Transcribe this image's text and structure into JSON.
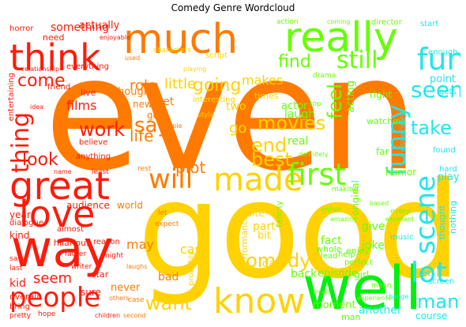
{
  "title": "Comedy Genre Wordcloud",
  "palette": {
    "red": "#ff1a0a",
    "orange": "#ff7a00",
    "yellow": "#ffd200",
    "lime": "#66ff00",
    "green": "#00f010",
    "cyan": "#22e6ea",
    "ltcyan": "#60f0f0"
  },
  "words": {
    "even": "even",
    "good": "good",
    "well": "well",
    "way": "way",
    "great": "great",
    "really": "really",
    "much": "much",
    "think": "think",
    "love": "love",
    "people": "people",
    "know": "know",
    "made": "made",
    "first": "first",
    "scene": "scene",
    "funny": "funny",
    "fun": "fun",
    "lot": "lot",
    "will": "will",
    "thing": "thing",
    "comedy": "comedy",
    "still": "still",
    "seen": "seen",
    "say": "say",
    "work": "work",
    "movies": "movies",
    "end": "end",
    "best": "best",
    "look": "look",
    "come": "come",
    "find": "find",
    "feel": "feel",
    "life": "life",
    "plot": "plot",
    "going": "going",
    "take": "take",
    "want": "want",
    "many": "many",
    "seem": "seem",
    "something": "something",
    "actually": "actually",
    "role": "role",
    "little": "little",
    "makes": "makes",
    "films": "films",
    "yet": "yet",
    "go": "go",
    "fact": "fact",
    "back": "back",
    "episode": "episode",
    "moment": "moment",
    "another": "another",
    "give": "give",
    "joke": "joke",
    "point": "point",
    "fun2": "fun",
    "real": "real",
    "laugh": "laugh",
    "bad": "bad",
    "may": "may",
    "cast": "cast",
    "part": "part",
    "bit": "bit",
    "world": "world",
    "year": "year",
    "kind": "kind",
    "audience": "audience",
    "day": "day",
    "never": "never",
    "star": "star",
    "sure": "sure",
    "kid": "kid",
    "overall": "overall",
    "almost": "almost",
    "actor": "actor",
    "acting": "acting",
    "director": "director",
    "start": "start",
    "play": "play",
    "humor": "humor",
    "course": "course",
    "original": "original",
    "performance": "performance",
    "family": "family",
    "far": "far",
    "right": "right",
    "watching": "watching",
    "especially": "especially",
    "thought": "thought",
    "nothing": "nothing",
    "girl": "girl",
    "set": "set",
    "gets": "gets",
    "probably": "probably",
    "hilarious": "hilarious",
    "reason": "reason",
    "dialogue": "dialogue",
    "need": "need",
    "everything": "everything",
    "friend": "friend",
    "horror": "horror",
    "entertaining": "entertaining",
    "though": "though",
    "new": "new",
    "got": "got",
    "funniest": "funniest",
    "interesting": "interesting",
    "believe": "believe",
    "anything": "anything",
    "characters": "characters",
    "enough": "enough",
    "found": "found",
    "hard": "hard",
    "screen": "screen",
    "others": "others",
    "enjoy": "enjoy",
    "things": "things",
    "script": "script",
    "perfect": "perfect",
    "help": "help",
    "music": "music",
    "whole": "whole",
    "lead": "lead",
    "quite": "quite",
    "two": "two",
    "times": "times",
    "made2": "made",
    "live": "live",
    "bring": "bring",
    "hope": "hope",
    "writer": "writer",
    "father": "father",
    "saw": "saw",
    "last": "last",
    "pretty": "pretty",
    "enjoyable": "enjoyable",
    "relationship": "relationship",
    "idea": "idea",
    "least": "least",
    "rest": "rest",
    "let": "let",
    "expect": "expect",
    "might": "might",
    "shows": "shows",
    "making": "making",
    "either": "either",
    "amazing": "amazing",
    "excellent": "excellent",
    "every": "every",
    "based": "based",
    "man": "man",
    "small": "small",
    "mean": "mean",
    "change": "change",
    "experience": "experience",
    "children": "children",
    "second": "second",
    "case": "case",
    "laughs": "laughs",
    "top": "top",
    "new2": "new",
    "action": "action",
    "playing": "playing",
    "style": "style",
    "definitely": "definitely",
    "drama": "drama",
    "coming": "coming",
    "name": "name",
    "couple": "couple",
    "used": "used"
  }
}
